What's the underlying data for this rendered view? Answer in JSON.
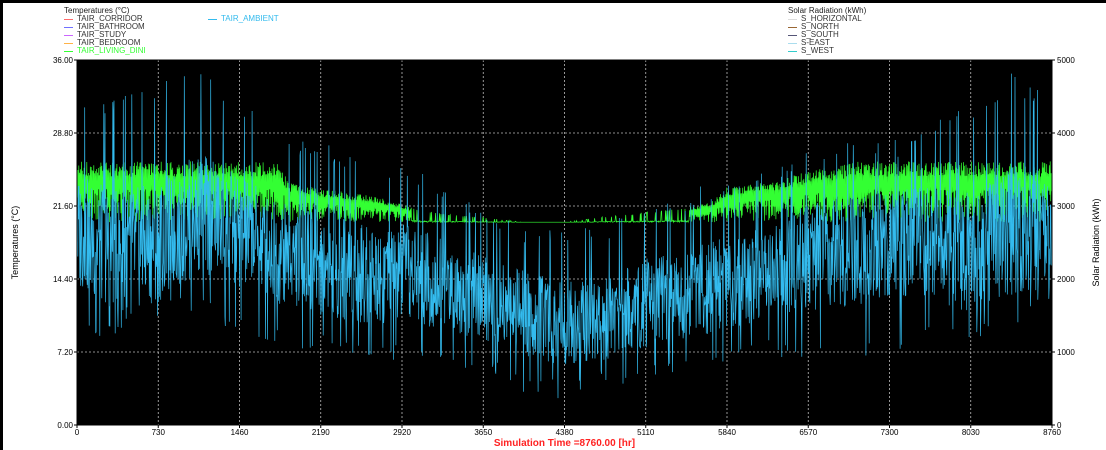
{
  "chart_data": {
    "type": "line",
    "left_legend": {
      "title": "Temperatures (°C)",
      "items": [
        {
          "name": "TAIR_CORRIDOR",
          "color": "#ff6b6b"
        },
        {
          "name": "TAIR_BATHROOM",
          "color": "#7070ff"
        },
        {
          "name": "TAIR_STUDY",
          "color": "#cc66ff"
        },
        {
          "name": "TAIR_BEDROOM",
          "color": "#ffb347"
        },
        {
          "name": "TAIR_LIVING_DINI",
          "color": "#33ff33"
        },
        {
          "name": "TAIR_AMBIENT",
          "color": "#33bbee"
        }
      ]
    },
    "right_legend": {
      "title": "Solar Radiation (kWh)",
      "items": [
        {
          "name": "S_HORIZONTAL",
          "color": "#dddddd"
        },
        {
          "name": "S_NORTH",
          "color": "#996633"
        },
        {
          "name": "S_SOUTH",
          "color": "#555577"
        },
        {
          "name": "S-EAST",
          "color": "#aaddee"
        },
        {
          "name": "S_WEST",
          "color": "#33cccc"
        }
      ]
    },
    "ylabel": "Temperatures (°C)",
    "y2label": "Solar Radiation (kWh)",
    "xlabel": "Simulation Time =8760.00 [hr]",
    "xlim": [
      0,
      8760
    ],
    "ylim": [
      0,
      36
    ],
    "y2lim": [
      0,
      5000
    ],
    "xticks": [
      "0",
      "730",
      "1460",
      "2190",
      "2920",
      "3650",
      "4380",
      "5110",
      "5840",
      "6570",
      "7300",
      "8030",
      "8760"
    ],
    "yticks": [
      "0.00",
      "7.20",
      "14.40",
      "21.60",
      "28.80",
      "36.00"
    ],
    "y2ticks": [
      "0",
      "1000",
      "2000",
      "3000",
      "4000",
      "5000"
    ],
    "grid": true,
    "background_color": "#000000",
    "xlabel_color": "#ff2222",
    "series": [
      {
        "name": "TAIR_LIVING_DINI",
        "color": "#33ff33",
        "x": [
          0,
          300,
          600,
          900,
          1200,
          1500,
          1800,
          1900,
          2100,
          2400,
          2700,
          3000,
          3300,
          3650,
          4000,
          4380,
          4700,
          5110,
          5500,
          5700,
          5840,
          6200,
          6570,
          7000,
          7300,
          7700,
          8030,
          8400,
          8760
        ],
        "base": [
          20,
          20,
          20,
          20,
          20,
          20,
          20,
          20,
          20,
          20,
          20,
          20,
          20,
          20,
          20,
          20,
          20,
          20,
          20,
          20,
          20,
          20,
          20,
          20,
          20,
          20,
          20,
          20,
          20
        ],
        "peak": [
          26,
          26,
          26,
          26,
          26,
          26,
          26,
          24,
          23.5,
          23,
          22.5,
          21.5,
          20.8,
          20.5,
          20,
          20,
          20.5,
          21,
          21.5,
          22,
          23.5,
          24,
          25,
          26,
          26,
          26,
          26,
          26,
          26
        ]
      },
      {
        "name": "TAIR_AMBIENT",
        "color": "#33bbee",
        "x": [
          0,
          365,
          730,
          1095,
          1460,
          1825,
          2190,
          2555,
          2920,
          3285,
          3650,
          4015,
          4380,
          4745,
          5110,
          5475,
          5840,
          6205,
          6570,
          6935,
          7300,
          7665,
          8030,
          8395,
          8760
        ],
        "values": [
          19,
          17,
          18,
          21,
          19,
          17,
          16,
          15,
          15,
          14,
          12.5,
          11,
          10,
          10.5,
          12,
          13,
          14,
          15,
          16.5,
          17,
          18,
          18,
          17,
          19,
          18.5
        ],
        "min": [
          8,
          9,
          10,
          11,
          9,
          8,
          7,
          7,
          6,
          5.5,
          5,
          3,
          2.5,
          3.5,
          4,
          5,
          6,
          7,
          6,
          6,
          7,
          8,
          8,
          9,
          12
        ],
        "max": [
          31,
          33,
          34,
          35,
          32,
          29,
          28,
          27,
          26,
          24,
          22,
          20,
          19,
          20,
          22,
          23,
          25,
          26,
          27,
          28,
          28,
          30,
          32,
          35,
          32
        ]
      }
    ]
  }
}
